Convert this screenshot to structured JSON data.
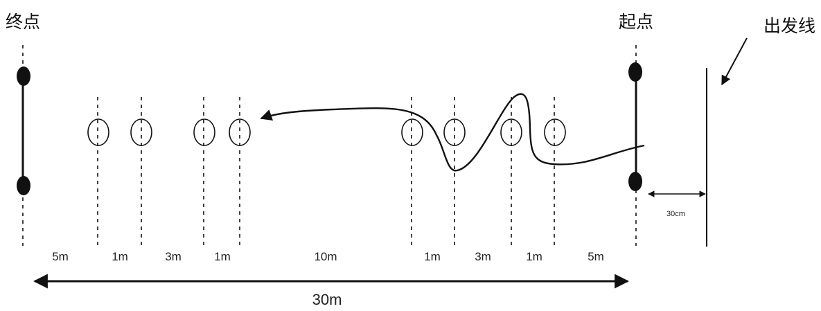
{
  "labels": {
    "finish": "终点",
    "start": "起点",
    "start_line": "出发线",
    "gap_to_line": "30cm",
    "total": "30m"
  },
  "segments": [
    "5m",
    "1m",
    "3m",
    "1m",
    "10m",
    "1m",
    "3m",
    "1m",
    "5m"
  ],
  "colors": {
    "ink": "#111111"
  }
}
